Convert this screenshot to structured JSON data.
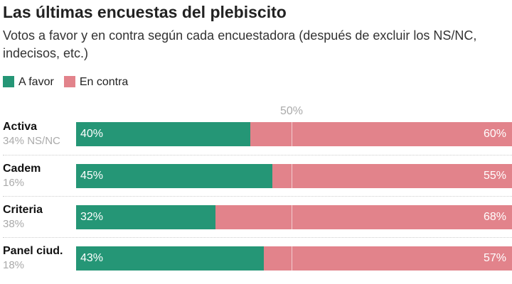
{
  "title": "Las últimas encuestas del plebiscito",
  "subtitle": "Votos a favor y en contra según cada encuestadora (después de excluir los NS/NC, indecisos, etc.)",
  "colors": {
    "a_favor": "#259676",
    "en_contra": "#e2838b"
  },
  "chart_data": {
    "type": "bar",
    "stacked": true,
    "orientation": "horizontal",
    "reference_label": "50%",
    "reference_value": 50,
    "xlim": [
      0,
      100
    ],
    "categories": [
      "Activa",
      "Cadem",
      "Criteria",
      "Panel ciud."
    ],
    "category_notes": [
      "34% NS/NC",
      "16%",
      "38%",
      "18%"
    ],
    "series": [
      {
        "name": "A favor",
        "values": [
          40,
          45,
          32,
          43
        ],
        "labels": [
          "40%",
          "45%",
          "32%",
          "43%"
        ]
      },
      {
        "name": "En contra",
        "values": [
          60,
          55,
          68,
          57
        ],
        "labels": [
          "60%",
          "55%",
          "68%",
          "57%"
        ]
      }
    ]
  }
}
